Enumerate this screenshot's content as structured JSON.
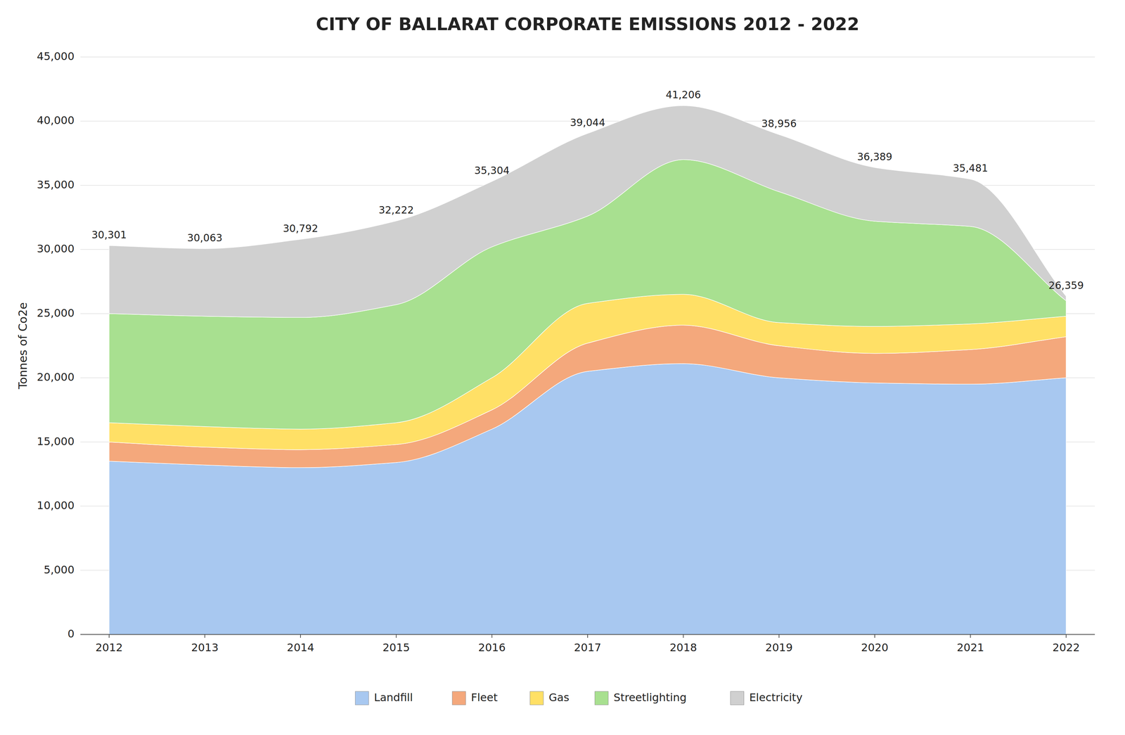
{
  "chart_data": {
    "type": "area",
    "stacked": true,
    "title": "CITY OF BALLARAT CORPORATE EMISSIONS 2012 - 2022",
    "ylabel": "Tonnes of Co2e",
    "x": [
      2012,
      2013,
      2014,
      2015,
      2016,
      2017,
      2018,
      2019,
      2020,
      2021,
      2022
    ],
    "series": [
      {
        "name": "Landfill",
        "color": "#a8c8f0",
        "values": [
          13500,
          13200,
          13000,
          13400,
          16000,
          20500,
          21100,
          20000,
          19600,
          19500,
          20000
        ]
      },
      {
        "name": "Fleet",
        "color": "#f4a87c",
        "values": [
          1500,
          1400,
          1400,
          1400,
          1500,
          2200,
          3000,
          2500,
          2300,
          2700,
          3200
        ]
      },
      {
        "name": "Gas",
        "color": "#ffe066",
        "values": [
          1500,
          1600,
          1600,
          1700,
          2500,
          3100,
          2400,
          1800,
          2100,
          2000,
          1600
        ]
      },
      {
        "name": "Streetlighting",
        "color": "#a8e090",
        "values": [
          8500,
          8600,
          8700,
          9200,
          10200,
          6800,
          10500,
          10200,
          8200,
          7600,
          1200
        ]
      },
      {
        "name": "Electricity",
        "color": "#d0d0d0",
        "values": [
          5301,
          5263,
          6092,
          6522,
          5104,
          6444,
          4206,
          4456,
          4189,
          3681,
          359
        ]
      }
    ],
    "totals": {
      "values": [
        30301,
        30063,
        30792,
        32222,
        35304,
        39044,
        41206,
        38956,
        36389,
        35481,
        26359
      ],
      "value_labels": [
        "30,301",
        "30,063",
        "30,792",
        "32,222",
        "35,304",
        "39,044",
        "41,206",
        "38,956",
        "36,389",
        "35,481",
        "26,359"
      ]
    },
    "xlim": [
      2011.7,
      2022.3
    ],
    "xticks": [
      2012,
      2013,
      2014,
      2015,
      2016,
      2017,
      2018,
      2019,
      2020,
      2021,
      2022
    ],
    "ylim": [
      0,
      45000
    ],
    "yticks": [
      0,
      {
        "value": 5000,
        "label": "5,000"
      },
      {
        "value": 10000,
        "label": "10,000"
      },
      {
        "value": 15000,
        "label": "15,000"
      },
      {
        "value": 20000,
        "label": "20,000"
      },
      {
        "value": 25000,
        "label": "25,000"
      },
      {
        "value": 30000,
        "label": "30,000"
      },
      {
        "value": 35000,
        "label": "35,000"
      },
      {
        "value": 40000,
        "label": "40,000"
      },
      {
        "value": 45000,
        "label": "45,000"
      }
    ],
    "grid": true,
    "legend": "bottom",
    "data_labels": true
  }
}
